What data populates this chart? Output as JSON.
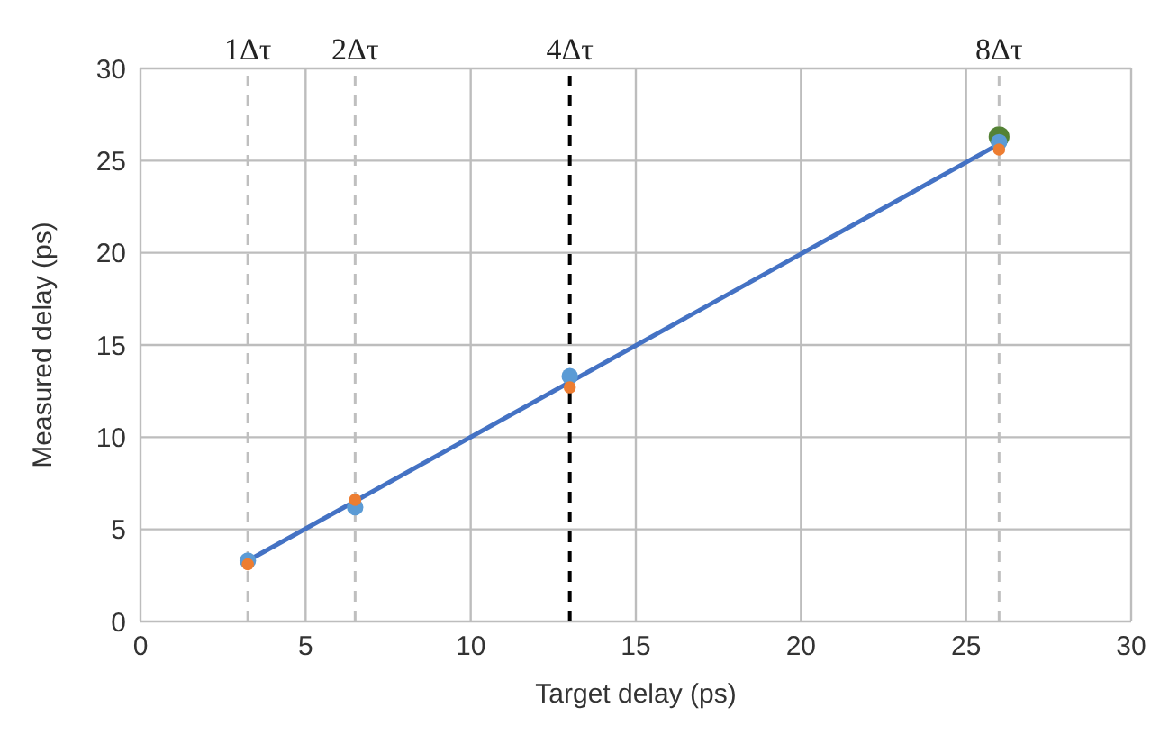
{
  "chart_data": {
    "type": "scatter",
    "xlabel": "Target delay (ps)",
    "ylabel": "Measured delay (ps)",
    "x": [
      3.25,
      6.5,
      13,
      26
    ],
    "series": [
      {
        "type": "line",
        "color": "#4472c4",
        "x": [
          3.25,
          26
        ],
        "values": [
          3.3,
          25.9
        ],
        "marker": "none",
        "line_style": "solid"
      },
      {
        "color": "#548235",
        "values": [
          null,
          null,
          null,
          26.3
        ]
      },
      {
        "color": "#5b9bd5",
        "values": [
          3.3,
          6.2,
          13.3,
          26.0
        ]
      },
      {
        "color": "#ed7d31",
        "values": [
          3.1,
          6.6,
          12.7,
          25.6
        ]
      }
    ],
    "marker": "circle",
    "xlim": [
      0,
      30
    ],
    "xticks": [
      0,
      5,
      10,
      15,
      20,
      25,
      30
    ],
    "ylim": [
      0,
      30
    ],
    "yticks": [
      0,
      5,
      10,
      15,
      20,
      25,
      30
    ],
    "grid": true,
    "legend": false,
    "ref_lines": [
      {
        "axis": "x",
        "value": 3.25,
        "label": "1Δτ",
        "color": "#bfbfbf",
        "line_style": "dashed"
      },
      {
        "axis": "x",
        "value": 6.5,
        "label": "2Δτ",
        "color": "#bfbfbf",
        "line_style": "dashed"
      },
      {
        "axis": "x",
        "value": 13,
        "label": "4Δτ",
        "color": "#000000",
        "line_style": "dashed"
      },
      {
        "axis": "x",
        "value": 26,
        "label": "8Δτ",
        "color": "#bfbfbf",
        "line_style": "dashed"
      }
    ]
  }
}
